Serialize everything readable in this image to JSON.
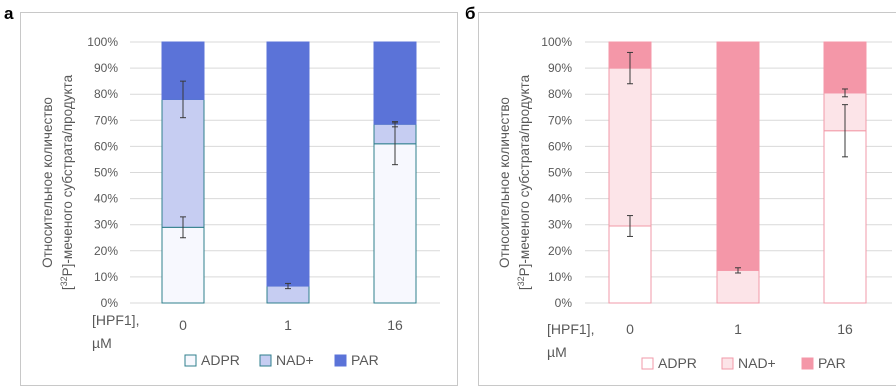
{
  "panels": [
    {
      "letter": "а",
      "y_title": [
        "Относительное количество",
        "-меченого субстрата/продукта"
      ],
      "y_title_prefix": "[",
      "y_title_sup": "32",
      "y_title_suffix": "P]",
      "x_label": [
        "[HPF1],",
        "µM"
      ],
      "legend_items": [
        "ADPR",
        "NAD+",
        "PAR"
      ]
    },
    {
      "letter": "б",
      "y_title": [
        "Относительное количество",
        "-меченого субстрата/продукта"
      ],
      "y_title_prefix": "[",
      "y_title_sup": "32",
      "y_title_suffix": "P]",
      "x_label": [
        "[HPF1],",
        "µM"
      ],
      "legend_items": [
        "ADPR",
        "NAD+",
        "PAR"
      ]
    }
  ],
  "chart_data": [
    {
      "type": "bar",
      "stacked": true,
      "percent": true,
      "categories": [
        "0",
        "1",
        "16"
      ],
      "series": [
        {
          "name": "ADPR",
          "values": [
            29,
            0,
            61
          ],
          "error": [
            4,
            0,
            8
          ],
          "color": "#f7f8fe",
          "edge": "#2f7f8c"
        },
        {
          "name": "NAD+",
          "values": [
            49,
            6.5,
            7.5
          ],
          "error": [
            7,
            1,
            1
          ],
          "color": "#c6cdf2",
          "edge": "#2f7f8c"
        },
        {
          "name": "PAR",
          "values": [
            22,
            93.5,
            31.5
          ],
          "error": [
            0,
            0,
            0
          ],
          "color": "#5b73d8",
          "edge": "#5b73d8"
        }
      ],
      "y_ticks": [
        "0%",
        "10%",
        "20%",
        "30%",
        "40%",
        "50%",
        "60%",
        "70%",
        "80%",
        "90%",
        "100%"
      ],
      "ylim": [
        0,
        100
      ],
      "grid": true,
      "legend": "bottom"
    },
    {
      "type": "bar",
      "stacked": true,
      "percent": true,
      "categories": [
        "0",
        "1",
        "16"
      ],
      "series": [
        {
          "name": "ADPR",
          "values": [
            29.5,
            0,
            66
          ],
          "error": [
            4,
            0,
            10
          ],
          "color": "#ffffff",
          "edge": "#f29aa8"
        },
        {
          "name": "NAD+",
          "values": [
            60.5,
            12.5,
            14.5
          ],
          "error": [
            6,
            1,
            1.5
          ],
          "color": "#fce4e8",
          "edge": "#f29aa8"
        },
        {
          "name": "PAR",
          "values": [
            10,
            87.5,
            19.5
          ],
          "error": [
            0,
            0,
            0
          ],
          "color": "#f497a8",
          "edge": "#f497a8"
        }
      ],
      "y_ticks": [
        "0%",
        "10%",
        "20%",
        "30%",
        "40%",
        "50%",
        "60%",
        "70%",
        "80%",
        "90%",
        "100%"
      ],
      "ylim": [
        0,
        100
      ],
      "grid": true,
      "legend": "bottom"
    }
  ]
}
